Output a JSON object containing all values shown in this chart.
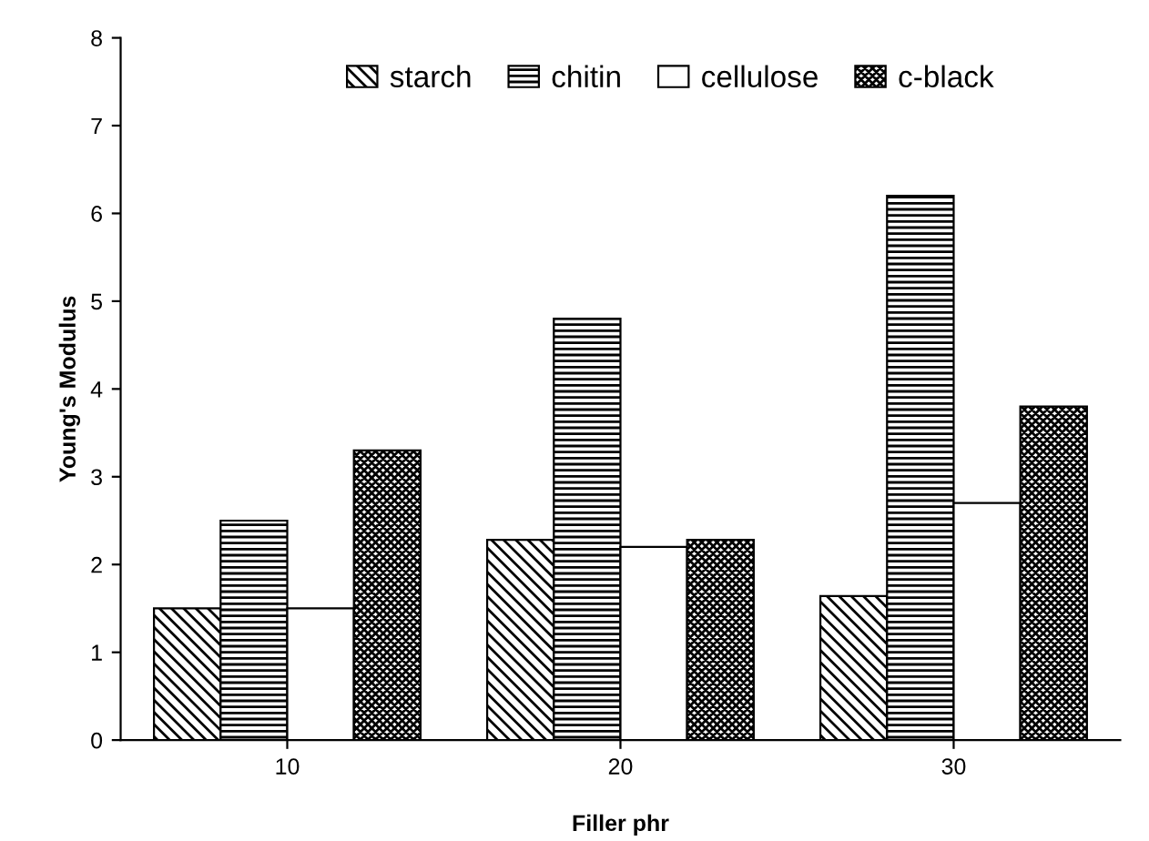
{
  "chart_data": {
    "type": "bar",
    "xlabel": "Filler phr",
    "ylabel": "Young's Modulus",
    "categories": [
      "10",
      "20",
      "30"
    ],
    "series": [
      {
        "name": "starch",
        "color": "#000000",
        "values": [
          1.5,
          2.28,
          1.64
        ]
      },
      {
        "name": "chitin",
        "color": "#000000",
        "values": [
          2.5,
          4.8,
          6.2
        ]
      },
      {
        "name": "cellulose",
        "color": "#000000",
        "values": [
          1.5,
          2.2,
          2.7
        ]
      },
      {
        "name": "c-black",
        "color": "#000000",
        "values": [
          3.3,
          2.28,
          3.8
        ]
      }
    ],
    "ylim": [
      0,
      8
    ],
    "yticks": [
      0,
      1,
      2,
      3,
      4,
      5,
      6,
      7,
      8
    ],
    "grid": false,
    "legend": "top"
  }
}
